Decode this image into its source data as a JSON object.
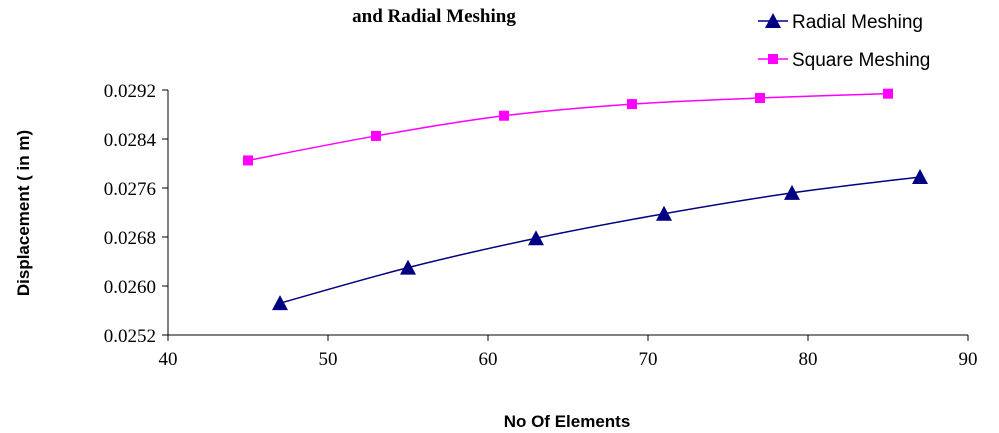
{
  "chart_data": {
    "type": "line",
    "title": "and Radial Meshing",
    "xlabel": "No Of Elements",
    "ylabel": "Displacement ( in m)",
    "xlim": [
      40,
      90
    ],
    "ylim": [
      0.0252,
      0.0292
    ],
    "x_ticks": [
      "40",
      "50",
      "60",
      "70",
      "80",
      "90"
    ],
    "y_ticks": [
      "0.0252",
      "0.0260",
      "0.0268",
      "0.0276",
      "0.0284",
      "0.0292"
    ],
    "grid": false,
    "legend_position": "top-right",
    "series": [
      {
        "name": "Radial Meshing",
        "marker": "triangle",
        "color": "#000080",
        "x": [
          47,
          55,
          63,
          71,
          79,
          87
        ],
        "values": [
          0.02572,
          0.0263,
          0.02678,
          0.02718,
          0.02752,
          0.02778
        ]
      },
      {
        "name": "Square Meshing",
        "marker": "square",
        "color": "#FF00FF",
        "x": [
          45,
          53,
          61,
          69,
          77,
          85
        ],
        "values": [
          0.02805,
          0.02845,
          0.02878,
          0.02897,
          0.02907,
          0.02914
        ]
      }
    ]
  }
}
